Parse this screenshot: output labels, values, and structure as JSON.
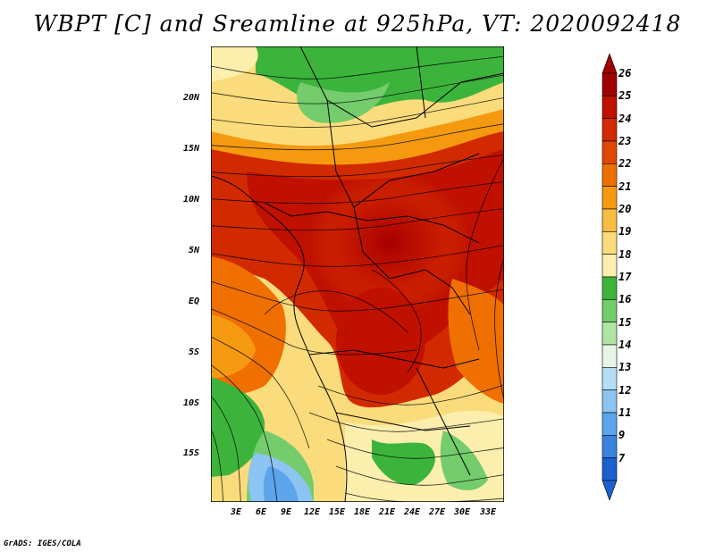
{
  "title": "WBPT [C] and Sreamline at 925hPa, VT: 2020092418",
  "credit": "GrADS: IGES/COLA",
  "lat_labels": [
    "20N",
    "15N",
    "10N",
    "5N",
    "EQ",
    "5S",
    "10S",
    "15S"
  ],
  "lon_labels": [
    "3E",
    "6E",
    "9E",
    "12E",
    "15E",
    "18E",
    "21E",
    "24E",
    "27E",
    "30E",
    "33E"
  ],
  "colorbar": {
    "labels": [
      "26",
      "25",
      "24",
      "23",
      "22",
      "21",
      "20",
      "19",
      "18",
      "17",
      "16",
      "15",
      "14",
      "13",
      "12",
      "11",
      "9",
      "7"
    ],
    "colors": [
      "#a00000",
      "#c01000",
      "#d22a00",
      "#e04800",
      "#ef7000",
      "#f59a10",
      "#f8be40",
      "#fbdc7c",
      "#fcefae",
      "#3cb43c",
      "#74cc6c",
      "#b0e4a4",
      "#e6f6e6",
      "#b6dcf6",
      "#8cc4f2",
      "#5ca4ec",
      "#3a84e0",
      "#1c60d0"
    ]
  }
}
